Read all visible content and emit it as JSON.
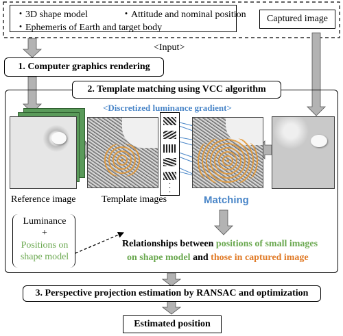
{
  "input": {
    "items": [
      "3D shape model",
      "Attitude and nominal position",
      "Ephemeris of Earth and target body"
    ],
    "captured_label": "Captured image",
    "input_label": "<Input>"
  },
  "steps": {
    "step1": "1. Computer graphics rendering",
    "step2": "2. Template matching using VCC algorithm",
    "step3": "3. Perspective projection estimation by RANSAC and optimization",
    "output": "Estimated position"
  },
  "template_matching": {
    "gradient_label": "<Discretized luminance gradient>",
    "reference_label": "Reference image",
    "template_label": "Template images",
    "matching_label": "Matching",
    "luminance": "Luminance",
    "plus": "+",
    "positions_line1": "Positions on",
    "positions_line2": "shape model"
  },
  "relationships": {
    "prefix": "Relationships between ",
    "green_line1": "positions of small images",
    "green_line2": "on shape model",
    "middle": " and ",
    "orange": "those in captured image"
  },
  "colors": {
    "blue": "#4a86c8",
    "green": "#6aa84f",
    "orange": "#e07b28",
    "arrow_gray": "#b3b3b3"
  }
}
